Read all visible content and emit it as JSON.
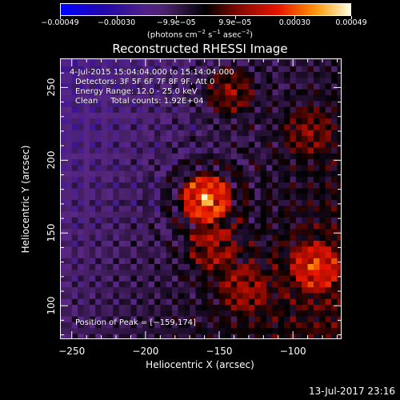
{
  "colorbar": {
    "ticks": [
      "−0.00049",
      "−0.00030",
      "−9.9e−05",
      "9.9e−05",
      "0.00030",
      "0.00049"
    ],
    "tick_values": [
      -0.00049,
      -0.0003,
      -9.9e-05,
      9.9e-05,
      0.0003,
      0.00049
    ],
    "unit_prefix": "(photons cm",
    "unit_exp1": "−2",
    "unit_mid1": " s",
    "unit_exp2": "−1",
    "unit_mid2": " asec",
    "unit_exp3": "−2",
    "unit_suffix": ")"
  },
  "chart_data": {
    "type": "heatmap",
    "title": "Reconstructed RHESSI Image",
    "xlabel": "Heliocentric X (arcsec)",
    "ylabel": "Heliocentric Y (arcsec)",
    "xlim": [
      -258,
      -67
    ],
    "ylim": [
      77,
      270
    ],
    "x_ticks": [
      -250,
      -200,
      -150,
      -100
    ],
    "y_ticks": [
      100,
      150,
      200,
      250
    ],
    "colorbar_range": [
      -0.00049,
      0.00049
    ],
    "peak": {
      "x": -159,
      "y": 174
    },
    "sources": [
      {
        "x": -159,
        "y": 174,
        "intensity": 1.0
      },
      {
        "x": -85,
        "y": 127,
        "intensity": 0.6
      },
      {
        "x": -143,
        "y": 248,
        "intensity": 0.5
      },
      {
        "x": -155,
        "y": 140,
        "intensity": 0.45
      },
      {
        "x": -133,
        "y": 112,
        "intensity": 0.4
      },
      {
        "x": -90,
        "y": 220,
        "intensity": 0.35
      }
    ],
    "annotations": [
      "4-Jul-2015 15:04:04.000 to 15:14:04.000",
      "Detectors: 3F 5F 6F 7F 8F 9F, Att 0",
      "Energy Range: 12.0 - 25.0 keV",
      "Clean     Total counts: 1.92E+04",
      "Position of Peak = [−159,174]"
    ]
  },
  "footer": "13-Jul-2017 23:16"
}
